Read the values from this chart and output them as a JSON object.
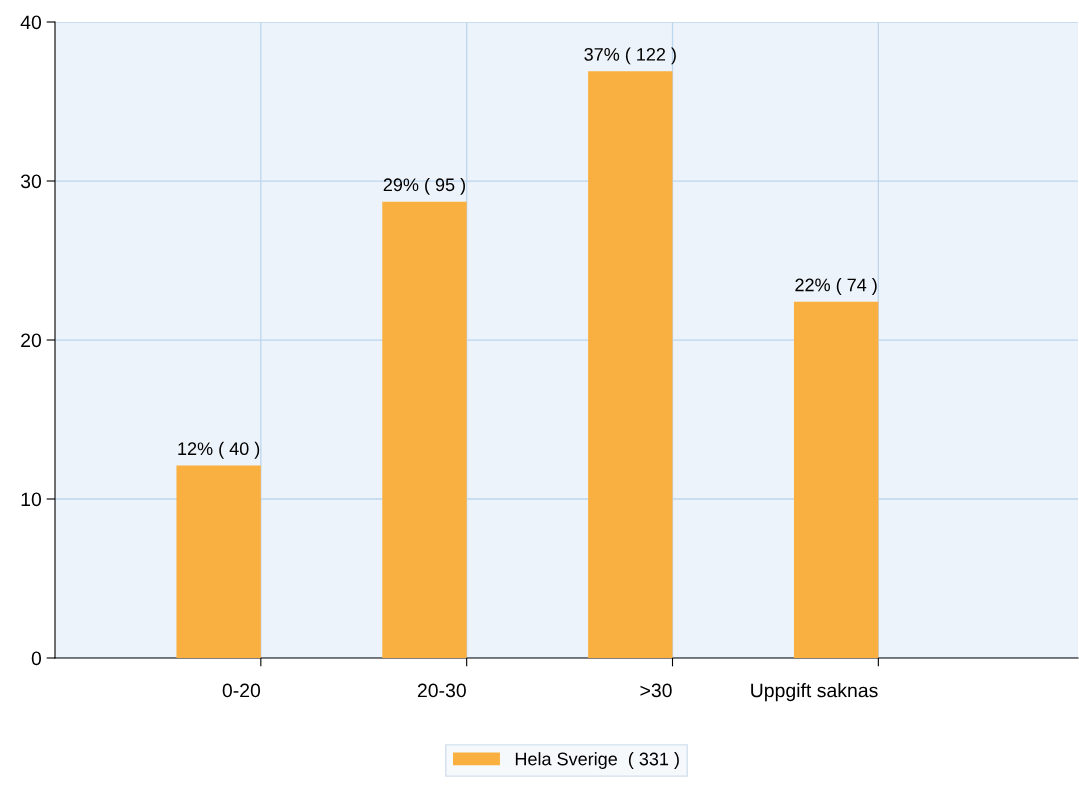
{
  "chart_data": {
    "type": "bar",
    "categories": [
      "0-20",
      "20-30",
      ">30",
      "Uppgift saknas"
    ],
    "series": [
      {
        "name": "Hela Sverige  ( 331 )",
        "color": "#f9b040",
        "values": [
          12.1,
          28.7,
          36.9,
          22.4
        ],
        "value_labels": [
          "12% ( 40 )",
          "29% ( 95 )",
          "37% ( 122 )",
          "22% ( 74 )"
        ]
      }
    ],
    "ylim": [
      0,
      40
    ],
    "yticks": [
      0,
      10,
      20,
      30,
      40
    ],
    "grid": true,
    "legend": "bottom"
  }
}
